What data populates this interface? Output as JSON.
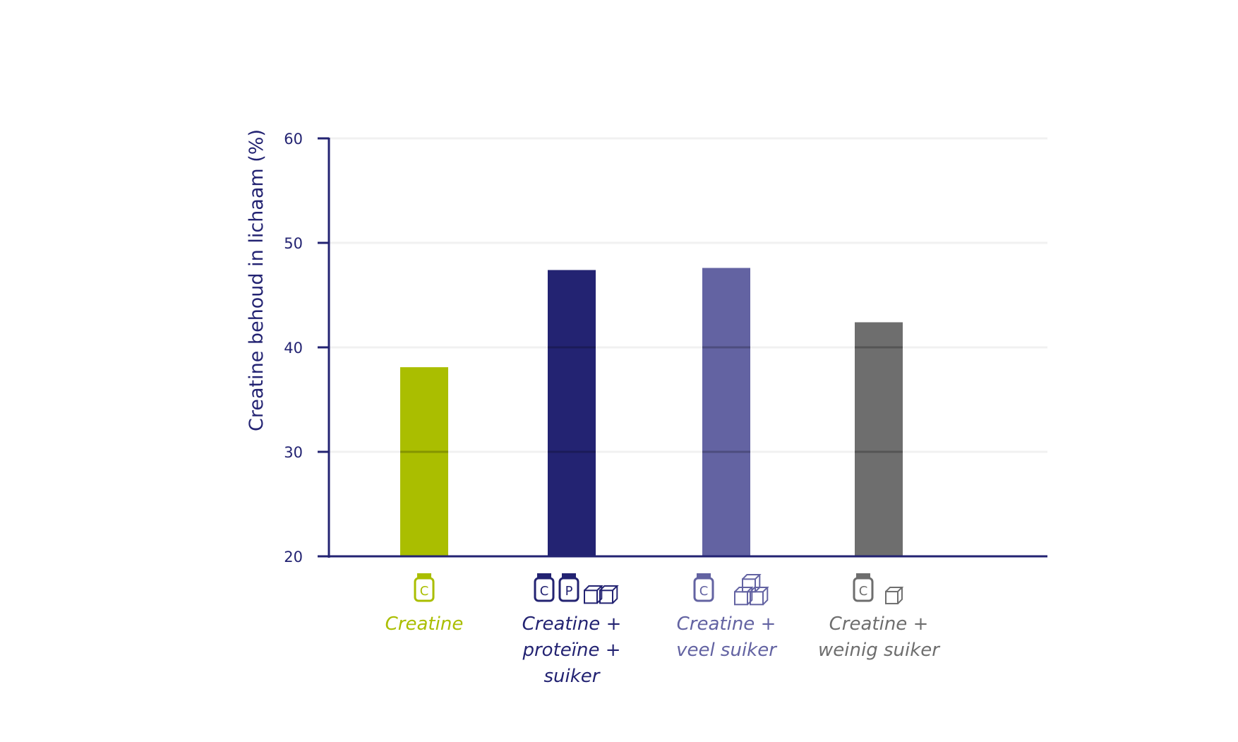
{
  "chart_data": {
    "type": "bar",
    "title": "",
    "xlabel": "",
    "ylabel": "Creatine behoud in lichaam (%)",
    "ylim": [
      20,
      60
    ],
    "yticks": [
      20,
      30,
      40,
      50,
      60
    ],
    "grid": true,
    "categories": [
      [
        "Creatine"
      ],
      [
        "Creatine +",
        "proteïne +",
        "suiker"
      ],
      [
        "Creatine +",
        "veel suiker"
      ],
      [
        "Creatine +",
        "weinig suiker"
      ]
    ],
    "values": [
      38.1,
      47.4,
      47.6,
      42.4
    ],
    "colors": [
      "#aabe00",
      "#232372",
      "#6363a2",
      "#6e6e6e"
    ],
    "axis_color": "#232372",
    "grid_color": "#f1f1f1"
  },
  "category_icons": [
    {
      "icons": [
        {
          "type": "jar-icon",
          "letter": "C"
        }
      ]
    },
    {
      "icons": [
        {
          "type": "jar-icon",
          "letter": "C"
        },
        {
          "type": "jar-icon",
          "letter": "P"
        },
        {
          "type": "sugar-cubes-icon",
          "count": 2
        }
      ]
    },
    {
      "icons": [
        {
          "type": "jar-icon",
          "letter": "C"
        },
        {
          "type": "sugar-cubes-icon",
          "count": 3
        }
      ]
    },
    {
      "icons": [
        {
          "type": "jar-icon",
          "letter": "C"
        },
        {
          "type": "sugar-cube-icon",
          "count": 1
        }
      ]
    }
  ]
}
